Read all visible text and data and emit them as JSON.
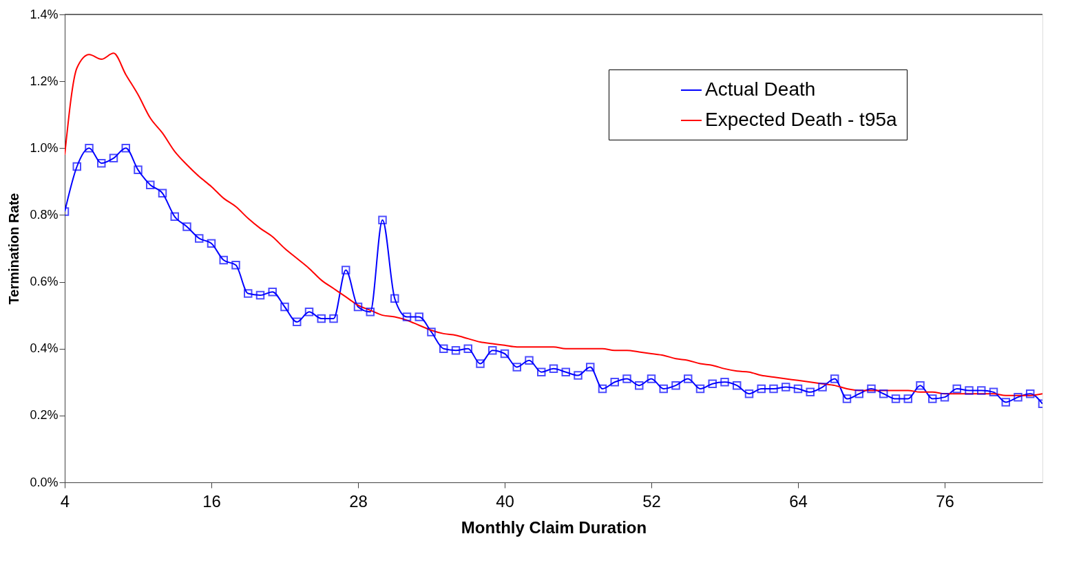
{
  "chart_data": {
    "type": "line",
    "xlabel": "Monthly Claim Duration",
    "ylabel": "Termination Rate",
    "x": [
      4,
      5,
      6,
      7,
      8,
      9,
      10,
      11,
      12,
      13,
      14,
      15,
      16,
      17,
      18,
      19,
      20,
      21,
      22,
      23,
      24,
      25,
      26,
      27,
      28,
      29,
      30,
      31,
      32,
      33,
      34,
      35,
      36,
      37,
      38,
      39,
      40,
      41,
      42,
      43,
      44,
      45,
      46,
      47,
      48,
      49,
      50,
      51,
      52,
      53,
      54,
      55,
      56,
      57,
      58,
      59,
      60,
      61,
      62,
      63,
      64,
      65,
      66,
      67,
      68,
      69,
      70,
      71,
      72,
      73,
      74,
      75,
      76,
      77,
      78,
      79,
      80,
      81,
      82,
      83,
      84
    ],
    "series": [
      {
        "name": "Actual Death",
        "color": "#0000ff",
        "marker": "square",
        "values": [
          0.81,
          0.945,
          1.0,
          0.955,
          0.97,
          1.0,
          0.935,
          0.89,
          0.865,
          0.795,
          0.765,
          0.73,
          0.715,
          0.665,
          0.65,
          0.565,
          0.56,
          0.57,
          0.525,
          0.48,
          0.51,
          0.49,
          0.49,
          0.635,
          0.525,
          0.51,
          0.785,
          0.55,
          0.495,
          0.495,
          0.45,
          0.4,
          0.395,
          0.4,
          0.355,
          0.395,
          0.385,
          0.345,
          0.365,
          0.33,
          0.34,
          0.33,
          0.32,
          0.345,
          0.28,
          0.3,
          0.31,
          0.29,
          0.31,
          0.28,
          0.29,
          0.31,
          0.28,
          0.295,
          0.3,
          0.29,
          0.265,
          0.28,
          0.28,
          0.285,
          0.28,
          0.27,
          0.285,
          0.31,
          0.25,
          0.265,
          0.28,
          0.265,
          0.25,
          0.25,
          0.29,
          0.25,
          0.255,
          0.28,
          0.275,
          0.275,
          0.27,
          0.24,
          0.255,
          0.265,
          0.235
        ]
      },
      {
        "name": "Expected Death - t95a",
        "color": "#ff0000",
        "marker": "none",
        "values": [
          0.98,
          1.24,
          1.28,
          1.266,
          1.284,
          1.22,
          1.16,
          1.09,
          1.045,
          0.99,
          0.95,
          0.915,
          0.885,
          0.85,
          0.825,
          0.79,
          0.76,
          0.735,
          0.7,
          0.67,
          0.64,
          0.605,
          0.58,
          0.555,
          0.53,
          0.515,
          0.5,
          0.495,
          0.485,
          0.47,
          0.455,
          0.445,
          0.44,
          0.43,
          0.42,
          0.415,
          0.41,
          0.405,
          0.405,
          0.405,
          0.405,
          0.4,
          0.4,
          0.4,
          0.4,
          0.395,
          0.395,
          0.39,
          0.385,
          0.38,
          0.37,
          0.365,
          0.355,
          0.35,
          0.34,
          0.333,
          0.33,
          0.32,
          0.315,
          0.31,
          0.305,
          0.3,
          0.295,
          0.29,
          0.28,
          0.275,
          0.275,
          0.275,
          0.275,
          0.275,
          0.27,
          0.27,
          0.265,
          0.265,
          0.265,
          0.265,
          0.265,
          0.26,
          0.26,
          0.26,
          0.265
        ]
      }
    ],
    "xlim": [
      4,
      84
    ],
    "xticks": [
      4,
      16,
      28,
      40,
      52,
      64,
      76
    ],
    "ylim": [
      0,
      1.4
    ],
    "yticks": [
      {
        "value": 0,
        "label": "0.0%"
      },
      {
        "value": 0.2,
        "label": "0.2%"
      },
      {
        "value": 0.4,
        "label": "0.4%"
      },
      {
        "value": 0.6,
        "label": "0.6%"
      },
      {
        "value": 0.8,
        "label": "0.8%"
      },
      {
        "value": 1.0,
        "label": "1.0%"
      },
      {
        "value": 1.2,
        "label": "1.2%"
      },
      {
        "value": 1.4,
        "label": "1.4%"
      }
    ],
    "grid": false,
    "legend": "top right",
    "line_style": "solid"
  }
}
